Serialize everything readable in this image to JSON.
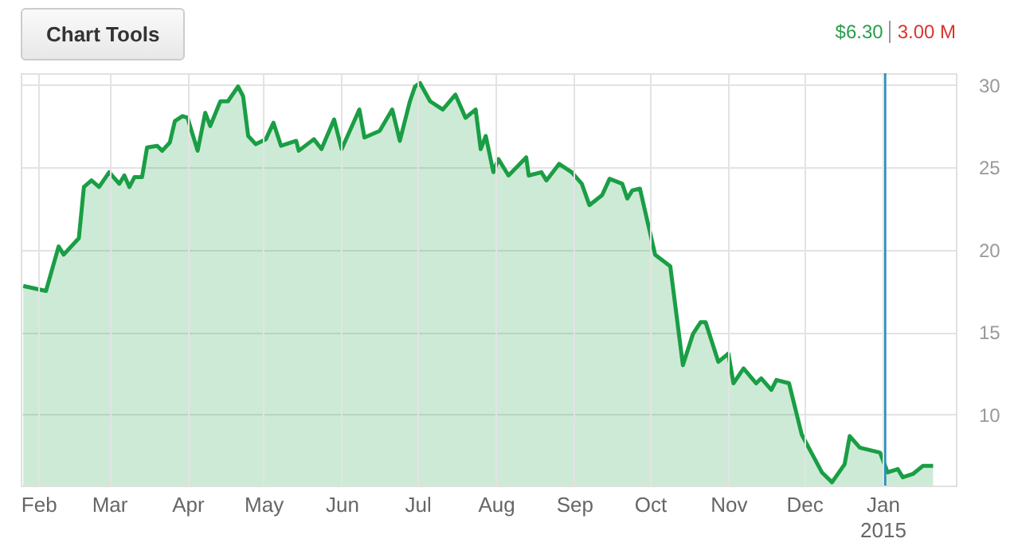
{
  "chart_data": {
    "type": "area",
    "annotations": [
      "Chart Tools",
      "$6.30",
      "3.00 M"
    ],
    "x": [
      "2014-01-26",
      "2014-02-04",
      "2014-02-09",
      "2014-02-11",
      "2014-02-17",
      "2014-02-19",
      "2014-02-22",
      "2014-02-25",
      "2014-03-01",
      "2014-03-05",
      "2014-03-07",
      "2014-03-09",
      "2014-03-11",
      "2014-03-14",
      "2014-03-16",
      "2014-03-20",
      "2014-03-22",
      "2014-03-25",
      "2014-03-27",
      "2014-03-30",
      "2014-04-01",
      "2014-04-05",
      "2014-04-08",
      "2014-04-10",
      "2014-04-14",
      "2014-04-17",
      "2014-04-21",
      "2014-04-23",
      "2014-04-25",
      "2014-04-28",
      "2014-05-02",
      "2014-05-05",
      "2014-05-08",
      "2014-05-14",
      "2014-05-15",
      "2014-05-21",
      "2014-05-24",
      "2014-05-29",
      "2014-06-01",
      "2014-06-08",
      "2014-06-10",
      "2014-06-16",
      "2014-06-21",
      "2014-06-24",
      "2014-06-28",
      "2014-06-30",
      "2014-07-02",
      "2014-07-06",
      "2014-07-11",
      "2014-07-16",
      "2014-07-20",
      "2014-07-24",
      "2014-07-26",
      "2014-07-28",
      "2014-07-31",
      "2014-08-02",
      "2014-08-06",
      "2014-08-13",
      "2014-08-14",
      "2014-08-19",
      "2014-08-21",
      "2014-08-26",
      "2014-08-31",
      "2014-09-04",
      "2014-09-07",
      "2014-09-12",
      "2014-09-15",
      "2014-09-20",
      "2014-09-22",
      "2014-09-24",
      "2014-09-27",
      "2014-10-03",
      "2014-10-09",
      "2014-10-14",
      "2014-10-18",
      "2014-10-21",
      "2014-10-23",
      "2014-10-28",
      "2014-11-01",
      "2014-11-03",
      "2014-11-07",
      "2014-11-12",
      "2014-11-14",
      "2014-11-18",
      "2014-11-20",
      "2014-11-25",
      "2014-11-30",
      "2014-12-08",
      "2014-12-12",
      "2014-12-17",
      "2014-12-19",
      "2014-12-23",
      "2014-12-31",
      "2015-01-03",
      "2015-01-07",
      "2015-01-09",
      "2015-01-13",
      "2015-01-17",
      "2015-01-21"
    ],
    "series": [
      {
        "color": "#1a9e45",
        "values": [
          17.8,
          17.5,
          20.2,
          19.7,
          20.7,
          23.8,
          24.2,
          23.8,
          24.7,
          24.0,
          24.5,
          23.8,
          24.4,
          24.4,
          26.2,
          26.3,
          26.0,
          26.5,
          27.8,
          28.1,
          28.0,
          26.0,
          28.3,
          27.5,
          29.0,
          29.0,
          29.9,
          29.3,
          26.9,
          26.4,
          26.7,
          27.7,
          26.3,
          26.6,
          26.0,
          26.7,
          26.1,
          27.9,
          26.1,
          28.5,
          26.8,
          27.2,
          28.5,
          26.6,
          29.0,
          29.9,
          30.1,
          29.0,
          28.5,
          29.4,
          28.0,
          28.5,
          26.1,
          26.9,
          24.7,
          25.5,
          24.5,
          25.6,
          24.5,
          24.7,
          24.2,
          25.2,
          24.7,
          24.0,
          22.7,
          23.3,
          24.3,
          24.0,
          23.1,
          23.6,
          23.7,
          19.7,
          19.0,
          13.0,
          14.9,
          15.6,
          15.6,
          13.2,
          13.7,
          11.9,
          12.8,
          11.9,
          12.2,
          11.5,
          12.1,
          11.9,
          8.8,
          6.5,
          5.9,
          7.0,
          8.7,
          8.0,
          7.7,
          6.5,
          6.7,
          6.2,
          6.4,
          6.9,
          6.9
        ]
      }
    ],
    "xlim": [
      "2014-01-25",
      "2015-01-30"
    ],
    "xticks": [
      {
        "value": "2014-02-01",
        "label": "Feb"
      },
      {
        "value": "2014-03-01",
        "label": "Mar"
      },
      {
        "value": "2014-04-01",
        "label": "Apr"
      },
      {
        "value": "2014-05-01",
        "label": "May"
      },
      {
        "value": "2014-06-01",
        "label": "Jun"
      },
      {
        "value": "2014-07-01",
        "label": "Jul"
      },
      {
        "value": "2014-08-01",
        "label": "Aug"
      },
      {
        "value": "2014-09-01",
        "label": "Sep"
      },
      {
        "value": "2014-10-01",
        "label": "Oct"
      },
      {
        "value": "2014-11-01",
        "label": "Nov"
      },
      {
        "value": "2014-12-01",
        "label": "Dec"
      },
      {
        "value": "2015-01-01",
        "label": "Jan\n2015"
      }
    ],
    "ylim": [
      5.7,
      30.7
    ],
    "yticks": [
      10,
      15,
      20,
      25,
      30
    ],
    "grid": true,
    "ref_lines": [
      {
        "axis": "x",
        "value": "2015-01-02",
        "color": "#2a8fbd"
      }
    ]
  }
}
